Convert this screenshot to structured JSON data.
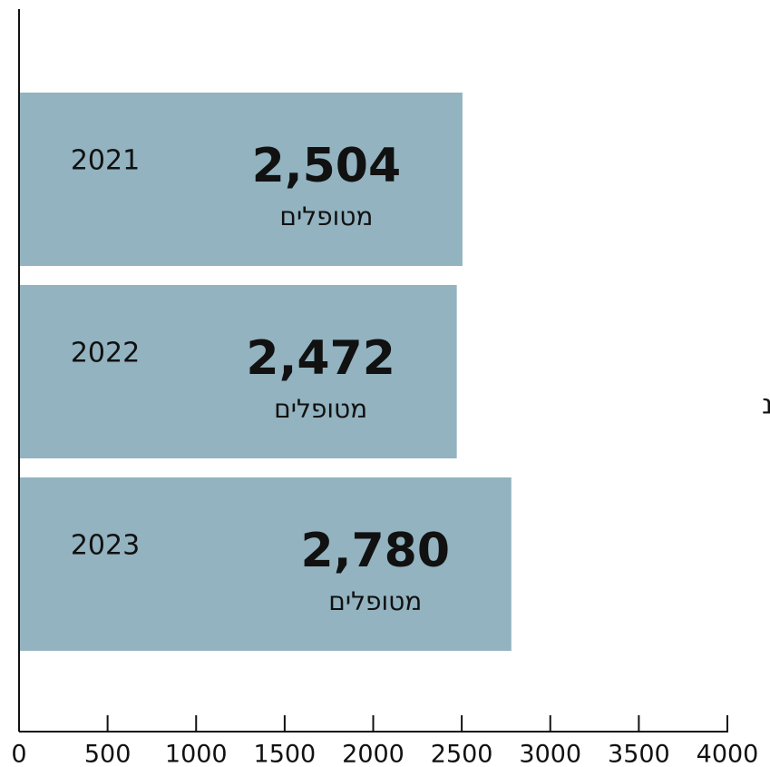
{
  "chart_data": {
    "type": "hbar",
    "categories": [
      "2021",
      "2022",
      "2023"
    ],
    "values": [
      2504,
      2472,
      2780
    ],
    "value_labels": [
      "2,504",
      "2,472",
      "2,780"
    ],
    "unit_label": "מטופלים",
    "color": "#92b3bf",
    "xlim": [
      0,
      4000
    ],
    "xticks": [
      0,
      500,
      1000,
      1500,
      2000,
      2500,
      3000,
      3500,
      4000
    ],
    "annotation": "נ"
  }
}
